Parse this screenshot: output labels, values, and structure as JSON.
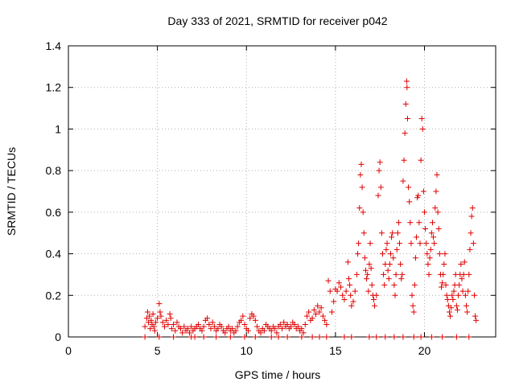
{
  "chart_data": {
    "type": "scatter",
    "title": "Day 333 of 2021, SRMTID for receiver p042",
    "xlabel": "GPS time / hours",
    "ylabel": "SRMTID / TECUs",
    "xlim": [
      0,
      24
    ],
    "ylim": [
      0,
      1.4
    ],
    "xticks": [
      0,
      5,
      10,
      15,
      20
    ],
    "xtick_labels": [
      "0",
      "5",
      "10",
      "15",
      "20"
    ],
    "yticks": [
      0,
      0.2,
      0.4,
      0.6,
      0.8,
      1.0,
      1.2,
      1.4
    ],
    "ytick_labels": [
      "0",
      "0.2",
      "0.4",
      "0.6",
      "0.8",
      "1",
      "1.2",
      "1.4"
    ],
    "grid": true,
    "marker": "+",
    "series_color": "#e00000",
    "series": [
      {
        "name": "SRMTID",
        "points": [
          [
            4.3,
            0.05
          ],
          [
            4.4,
            0.09
          ],
          [
            4.45,
            0.12
          ],
          [
            4.5,
            0.07
          ],
          [
            4.55,
            0.1
          ],
          [
            4.6,
            0.04
          ],
          [
            4.65,
            0.08
          ],
          [
            4.7,
            0.06
          ],
          [
            4.75,
            0.11
          ],
          [
            4.8,
            0.05
          ],
          [
            4.85,
            0.03
          ],
          [
            4.9,
            0.07
          ],
          [
            5.0,
            0.09
          ],
          [
            5.1,
            0.16
          ],
          [
            5.15,
            0.12
          ],
          [
            5.2,
            0.1
          ],
          [
            5.3,
            0.07
          ],
          [
            5.4,
            0.05
          ],
          [
            5.5,
            0.08
          ],
          [
            5.6,
            0.06
          ],
          [
            5.7,
            0.11
          ],
          [
            5.75,
            0.09
          ],
          [
            5.8,
            0.04
          ],
          [
            5.9,
            0.06
          ],
          [
            6.0,
            0.03
          ],
          [
            6.1,
            0.07
          ],
          [
            6.2,
            0.05
          ],
          [
            6.3,
            0.04
          ],
          [
            6.4,
            0.02
          ],
          [
            6.5,
            0.05
          ],
          [
            6.6,
            0.03
          ],
          [
            6.7,
            0.04
          ],
          [
            6.8,
            0.02
          ],
          [
            6.9,
            0.05
          ],
          [
            7.0,
            0.03
          ],
          [
            7.1,
            0.04
          ],
          [
            7.2,
            0.05
          ],
          [
            7.3,
            0.06
          ],
          [
            7.4,
            0.04
          ],
          [
            7.5,
            0.03
          ],
          [
            7.6,
            0.05
          ],
          [
            7.7,
            0.08
          ],
          [
            7.8,
            0.09
          ],
          [
            7.9,
            0.06
          ],
          [
            8.0,
            0.04
          ],
          [
            8.1,
            0.07
          ],
          [
            8.2,
            0.05
          ],
          [
            8.3,
            0.03
          ],
          [
            8.4,
            0.04
          ],
          [
            8.5,
            0.06
          ],
          [
            8.6,
            0.05
          ],
          [
            8.7,
            0.03
          ],
          [
            8.8,
            0.02
          ],
          [
            8.9,
            0.04
          ],
          [
            9.0,
            0.05
          ],
          [
            9.1,
            0.03
          ],
          [
            9.2,
            0.04
          ],
          [
            9.3,
            0.02
          ],
          [
            9.4,
            0.03
          ],
          [
            9.5,
            0.05
          ],
          [
            9.6,
            0.07
          ],
          [
            9.7,
            0.08
          ],
          [
            9.8,
            0.1
          ],
          [
            9.9,
            0.06
          ],
          [
            10.0,
            0.04
          ],
          [
            10.1,
            0.03
          ],
          [
            10.2,
            0.09
          ],
          [
            10.3,
            0.11
          ],
          [
            10.4,
            0.1
          ],
          [
            10.5,
            0.08
          ],
          [
            10.6,
            0.05
          ],
          [
            10.7,
            0.03
          ],
          [
            10.8,
            0.02
          ],
          [
            10.9,
            0.04
          ],
          [
            11.0,
            0.03
          ],
          [
            11.1,
            0.06
          ],
          [
            11.2,
            0.05
          ],
          [
            11.3,
            0.04
          ],
          [
            11.4,
            0.03
          ],
          [
            11.5,
            0.05
          ],
          [
            11.6,
            0.04
          ],
          [
            11.7,
            0.02
          ],
          [
            11.8,
            0.05
          ],
          [
            11.9,
            0.06
          ],
          [
            12.0,
            0.04
          ],
          [
            12.1,
            0.07
          ],
          [
            12.2,
            0.05
          ],
          [
            12.3,
            0.06
          ],
          [
            12.4,
            0.04
          ],
          [
            12.5,
            0.05
          ],
          [
            12.6,
            0.07
          ],
          [
            12.7,
            0.06
          ],
          [
            12.8,
            0.04
          ],
          [
            12.9,
            0.05
          ],
          [
            13.0,
            0.03
          ],
          [
            13.1,
            0.04
          ],
          [
            13.2,
            0.02
          ],
          [
            13.3,
            0.06
          ],
          [
            13.4,
            0.1
          ],
          [
            13.5,
            0.12
          ],
          [
            13.6,
            0.08
          ],
          [
            13.7,
            0.09
          ],
          [
            13.8,
            0.13
          ],
          [
            13.9,
            0.11
          ],
          [
            14.0,
            0.15
          ],
          [
            14.1,
            0.12
          ],
          [
            14.2,
            0.14
          ],
          [
            14.3,
            0.1
          ],
          [
            14.4,
            0.08
          ],
          [
            14.5,
            0.06
          ],
          [
            14.6,
            0.27
          ],
          [
            14.7,
            0.22
          ],
          [
            14.8,
            0.12
          ],
          [
            14.9,
            0.17
          ],
          [
            15.0,
            0.23
          ],
          [
            15.1,
            0.22
          ],
          [
            15.2,
            0.26
          ],
          [
            15.3,
            0.24
          ],
          [
            15.4,
            0.2
          ],
          [
            15.5,
            0.18
          ],
          [
            15.6,
            0.22
          ],
          [
            15.7,
            0.36
          ],
          [
            15.75,
            0.28
          ],
          [
            15.8,
            0.25
          ],
          [
            15.85,
            0.2
          ],
          [
            15.9,
            0.15
          ],
          [
            16.0,
            0.17
          ],
          [
            16.1,
            0.22
          ],
          [
            16.2,
            0.3
          ],
          [
            16.25,
            0.4
          ],
          [
            16.3,
            0.45
          ],
          [
            16.35,
            0.62
          ],
          [
            16.4,
            0.78
          ],
          [
            16.45,
            0.83
          ],
          [
            16.5,
            0.72
          ],
          [
            16.55,
            0.6
          ],
          [
            16.6,
            0.5
          ],
          [
            16.65,
            0.38
          ],
          [
            16.7,
            0.32
          ],
          [
            16.75,
            0.28
          ],
          [
            16.8,
            0.3
          ],
          [
            16.85,
            0.22
          ],
          [
            16.9,
            0.35
          ],
          [
            16.95,
            0.45
          ],
          [
            17.0,
            0.33
          ],
          [
            17.05,
            0.25
          ],
          [
            17.1,
            0.2
          ],
          [
            17.15,
            0.18
          ],
          [
            17.2,
            0.15
          ],
          [
            17.3,
            0.2
          ],
          [
            17.4,
            0.68
          ],
          [
            17.45,
            0.8
          ],
          [
            17.5,
            0.84
          ],
          [
            17.55,
            0.72
          ],
          [
            17.6,
            0.5
          ],
          [
            17.65,
            0.4
          ],
          [
            17.7,
            0.3
          ],
          [
            17.75,
            0.25
          ],
          [
            17.8,
            0.35
          ],
          [
            17.85,
            0.42
          ],
          [
            17.9,
            0.45
          ],
          [
            17.95,
            0.32
          ],
          [
            18.0,
            0.28
          ],
          [
            18.05,
            0.35
          ],
          [
            18.1,
            0.4
          ],
          [
            18.15,
            0.48
          ],
          [
            18.2,
            0.5
          ],
          [
            18.25,
            0.38
          ],
          [
            18.3,
            0.25
          ],
          [
            18.35,
            0.2
          ],
          [
            18.4,
            0.3
          ],
          [
            18.45,
            0.42
          ],
          [
            18.5,
            0.5
          ],
          [
            18.55,
            0.55
          ],
          [
            18.6,
            0.45
          ],
          [
            18.65,
            0.35
          ],
          [
            18.7,
            0.28
          ],
          [
            18.75,
            0.3
          ],
          [
            18.8,
            0.75
          ],
          [
            18.85,
            0.85
          ],
          [
            18.9,
            0.98
          ],
          [
            18.95,
            1.12
          ],
          [
            19.0,
            1.23
          ],
          [
            19.02,
            1.2
          ],
          [
            19.05,
            1.05
          ],
          [
            19.1,
            0.72
          ],
          [
            19.15,
            0.65
          ],
          [
            19.2,
            0.55
          ],
          [
            19.25,
            0.45
          ],
          [
            19.3,
            0.2
          ],
          [
            19.35,
            0.15
          ],
          [
            19.4,
            0.12
          ],
          [
            19.45,
            0.25
          ],
          [
            19.5,
            0.38
          ],
          [
            19.55,
            0.48
          ],
          [
            19.6,
            0.67
          ],
          [
            19.65,
            0.68
          ],
          [
            19.7,
            0.55
          ],
          [
            19.75,
            0.45
          ],
          [
            19.8,
            0.85
          ],
          [
            19.85,
            1.05
          ],
          [
            19.9,
            1.0
          ],
          [
            19.95,
            0.7
          ],
          [
            20.0,
            0.6
          ],
          [
            20.05,
            0.52
          ],
          [
            20.1,
            0.45
          ],
          [
            20.15,
            0.4
          ],
          [
            20.2,
            0.35
          ],
          [
            20.25,
            0.3
          ],
          [
            20.3,
            0.38
          ],
          [
            20.35,
            0.42
          ],
          [
            20.4,
            0.5
          ],
          [
            20.45,
            0.55
          ],
          [
            20.5,
            0.48
          ],
          [
            20.55,
            0.45
          ],
          [
            20.6,
            0.62
          ],
          [
            20.65,
            0.7
          ],
          [
            20.7,
            0.78
          ],
          [
            20.75,
            0.6
          ],
          [
            20.8,
            0.52
          ],
          [
            20.85,
            0.4
          ],
          [
            20.9,
            0.3
          ],
          [
            20.95,
            0.24
          ],
          [
            21.0,
            0.26
          ],
          [
            21.05,
            0.3
          ],
          [
            21.1,
            0.35
          ],
          [
            21.15,
            0.4
          ],
          [
            21.2,
            0.25
          ],
          [
            21.25,
            0.2
          ],
          [
            21.3,
            0.18
          ],
          [
            21.35,
            0.15
          ],
          [
            21.4,
            0.12
          ],
          [
            21.45,
            0.1
          ],
          [
            21.5,
            0.14
          ],
          [
            21.55,
            0.2
          ],
          [
            21.6,
            0.18
          ],
          [
            21.65,
            0.22
          ],
          [
            21.7,
            0.25
          ],
          [
            21.75,
            0.3
          ],
          [
            21.8,
            0.15
          ],
          [
            21.85,
            0.13
          ],
          [
            21.9,
            0.2
          ],
          [
            21.95,
            0.25
          ],
          [
            22.0,
            0.3
          ],
          [
            22.05,
            0.35
          ],
          [
            22.1,
            0.28
          ],
          [
            22.15,
            0.22
          ],
          [
            22.2,
            0.3
          ],
          [
            22.25,
            0.36
          ],
          [
            22.3,
            0.2
          ],
          [
            22.35,
            0.15
          ],
          [
            22.4,
            0.12
          ],
          [
            22.45,
            0.22
          ],
          [
            22.5,
            0.3
          ],
          [
            22.55,
            0.42
          ],
          [
            22.6,
            0.5
          ],
          [
            22.65,
            0.58
          ],
          [
            22.7,
            0.62
          ],
          [
            22.75,
            0.45
          ],
          [
            22.8,
            0.2
          ],
          [
            22.85,
            0.1
          ],
          [
            22.9,
            0.08
          ],
          [
            4.3,
            0.0
          ],
          [
            5.1,
            0.0
          ],
          [
            5.9,
            0.0
          ],
          [
            6.9,
            0.0
          ],
          [
            7.1,
            0.0
          ],
          [
            7.6,
            0.0
          ],
          [
            8.3,
            0.0
          ],
          [
            9.1,
            0.0
          ],
          [
            9.9,
            0.0
          ],
          [
            10.5,
            0.0
          ],
          [
            11.4,
            0.0
          ],
          [
            11.8,
            0.0
          ],
          [
            12.3,
            0.0
          ],
          [
            13.1,
            0.0
          ],
          [
            13.7,
            0.0
          ],
          [
            14.1,
            0.0
          ],
          [
            14.5,
            0.0
          ],
          [
            15.5,
            0.0
          ],
          [
            15.9,
            0.0
          ],
          [
            16.9,
            0.0
          ],
          [
            17.3,
            0.0
          ],
          [
            17.8,
            0.0
          ],
          [
            18.3,
            0.0
          ],
          [
            18.8,
            0.0
          ],
          [
            19.4,
            0.0
          ],
          [
            19.8,
            0.0
          ],
          [
            20.4,
            0.0
          ],
          [
            21.0,
            0.0
          ],
          [
            21.8,
            0.0
          ],
          [
            22.5,
            0.0
          ]
        ]
      }
    ]
  }
}
